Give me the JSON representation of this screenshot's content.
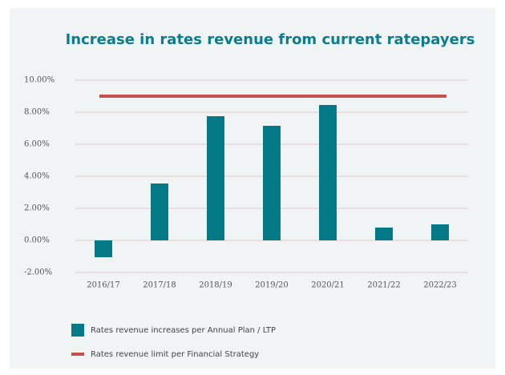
{
  "chart_data": {
    "type": "bar",
    "title": "Increase in rates revenue from current ratepayers",
    "categories": [
      "2016/17",
      "2017/18",
      "2018/19",
      "2019/20",
      "2020/21",
      "2021/22",
      "2022/23"
    ],
    "series": [
      {
        "name": "Rates revenue increases per Annual Plan / LTP",
        "color": "#047a87",
        "type": "bar",
        "values": [
          -1.05,
          3.55,
          7.75,
          7.15,
          8.45,
          0.8,
          1.0
        ]
      },
      {
        "name": "Rates revenue limit per Financial Strategy",
        "color": "#c4504f",
        "type": "line",
        "values": [
          9.0,
          9.0,
          9.0,
          9.0,
          9.0,
          9.0,
          9.0
        ]
      }
    ],
    "ylim": [
      -2,
      10
    ],
    "yticks": [
      {
        "value": -2,
        "label": "-2.00%"
      },
      {
        "value": 0,
        "label": "0.00%"
      },
      {
        "value": 2,
        "label": "2.00%"
      },
      {
        "value": 4,
        "label": "4.00%"
      },
      {
        "value": 6,
        "label": "6.00%"
      },
      {
        "value": 8,
        "label": "8.00%"
      },
      {
        "value": 10,
        "label": "10.00%"
      }
    ],
    "grid": true
  }
}
